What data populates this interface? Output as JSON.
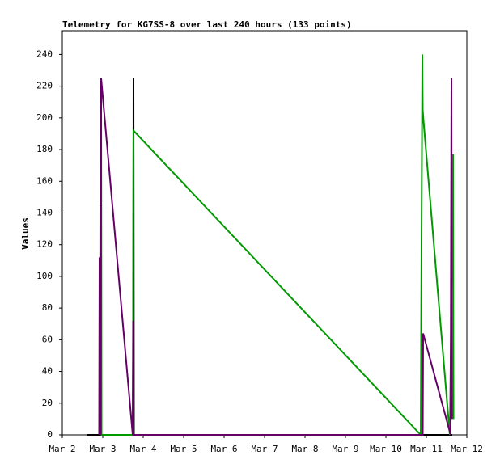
{
  "chart_data": {
    "type": "line",
    "title": "Telemetry for KG7SS-8 over last 240 hours (133 points)",
    "y_label": "Values",
    "xlim": [
      2,
      12
    ],
    "xticks": [
      {
        "value": 2,
        "label": "Mar 2"
      },
      {
        "value": 3,
        "label": "Mar 3"
      },
      {
        "value": 4,
        "label": "Mar 4"
      },
      {
        "value": 5,
        "label": "Mar 5"
      },
      {
        "value": 6,
        "label": "Mar 6"
      },
      {
        "value": 7,
        "label": "Mar 7"
      },
      {
        "value": 8,
        "label": "Mar 8"
      },
      {
        "value": 9,
        "label": "Mar 9"
      },
      {
        "value": 10,
        "label": "Mar 10"
      },
      {
        "value": 11,
        "label": "Mar 11"
      },
      {
        "value": 12,
        "label": "Mar 12"
      }
    ],
    "ylim": [
      0,
      255
    ],
    "yticks": [
      0,
      20,
      40,
      60,
      80,
      100,
      120,
      140,
      160,
      180,
      200,
      220,
      240
    ],
    "series": [
      {
        "color": "#000000",
        "x": [
          2.62,
          3.75,
          3.76,
          3.77,
          11.64
        ],
        "values": [
          0,
          0,
          225,
          0,
          0
        ]
      },
      {
        "color": "#009900",
        "x": [
          2.95,
          2.96,
          2.97,
          3.74,
          3.75,
          3.76,
          10.86,
          10.9,
          10.91,
          10.93,
          11.58,
          11.66,
          11.67
        ],
        "values": [
          0,
          225,
          0,
          0,
          48,
          192,
          0,
          240,
          205,
          198,
          0,
          177,
          10
        ]
      },
      {
        "color": "#660066",
        "x": [
          2.91,
          2.92,
          2.93,
          2.94,
          2.95,
          2.96,
          3.74,
          3.75,
          3.76,
          10.91,
          10.92,
          11.6,
          11.61,
          11.62,
          11.63
        ],
        "values": [
          0,
          112,
          0,
          145,
          0,
          225,
          0,
          72,
          0,
          0,
          64,
          0,
          128,
          225,
          10
        ]
      }
    ]
  }
}
